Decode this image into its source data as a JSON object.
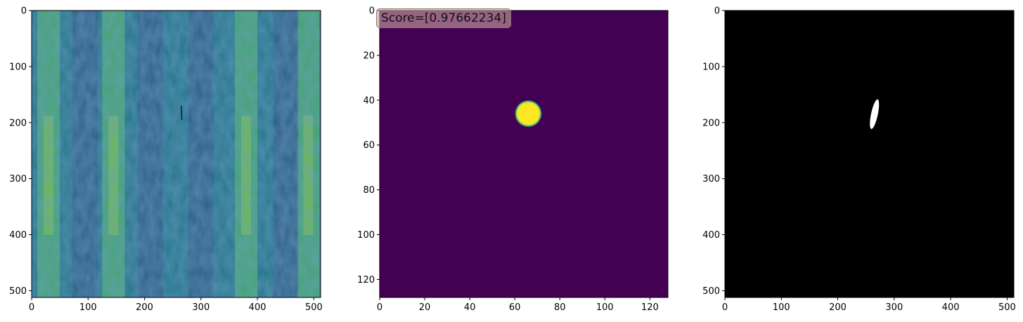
{
  "chart_data": [
    {
      "type": "heatmap",
      "title": "",
      "xlabel": "",
      "ylabel": "",
      "xlim": [
        0,
        512
      ],
      "ylim": [
        512,
        0
      ],
      "x_ticks": [
        0,
        100,
        200,
        300,
        400,
        500
      ],
      "y_ticks": [
        0,
        100,
        200,
        300,
        400,
        500
      ],
      "colormap": "viridis",
      "description_values": {
        "bright_vertical_bands_center_x": [
          30,
          145,
          380,
          490
        ],
        "dark_vertical_bands_center_x": [
          95,
          210,
          300,
          450
        ],
        "small_dark_streak": {
          "x": 265,
          "y_range": [
            170,
            195
          ]
        }
      }
    },
    {
      "type": "heatmap",
      "title": "",
      "xlabel": "",
      "ylabel": "",
      "xlim": [
        0,
        128
      ],
      "ylim": [
        128,
        0
      ],
      "x_ticks": [
        0,
        20,
        40,
        60,
        80,
        100,
        120
      ],
      "y_ticks": [
        0,
        20,
        40,
        60,
        80,
        100,
        120
      ],
      "colormap": "viridis",
      "background_color": "#440154",
      "blob": {
        "center_x": 66,
        "center_y": 46,
        "radius": 6,
        "color": "#fde725"
      },
      "annotation": "Score=[0.97662234]"
    },
    {
      "type": "heatmap",
      "title": "",
      "xlabel": "",
      "ylabel": "",
      "xlim": [
        0,
        512
      ],
      "ylim": [
        512,
        0
      ],
      "x_ticks": [
        0,
        100,
        200,
        300,
        400,
        500
      ],
      "y_ticks": [
        0,
        100,
        200,
        300,
        400,
        500
      ],
      "colormap": "gray",
      "background_color": "#000000",
      "mask": {
        "center_x": 265,
        "center_y": 185,
        "semi_width": 6,
        "semi_height": 27,
        "color": "#ffffff"
      }
    }
  ]
}
